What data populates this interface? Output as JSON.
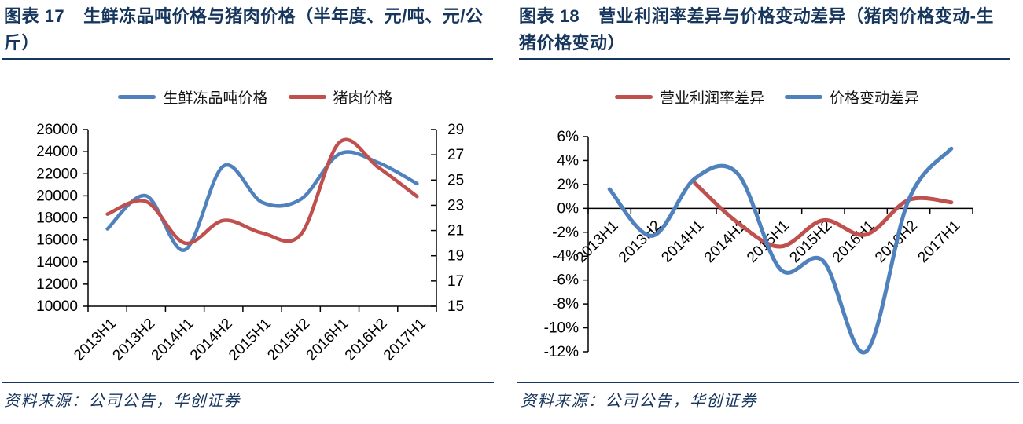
{
  "accent_color": "#17365D",
  "left_panel": {
    "figure_label": "图表 17",
    "title": "生鲜冻品吨价格与猪肉价格（半年度、元/吨、元/公斤）",
    "source": "资料来源：公司公告，华创证券"
  },
  "right_panel": {
    "figure_label": "图表 18",
    "title": "营业利润率差异与价格变动差异（猪肉价格变动-生猪价格变动）",
    "source": "资料来源：公司公告，华创证券"
  },
  "chart_data": [
    {
      "type": "line",
      "title": "生鲜冻品吨价格与猪肉价格（半年度、元/吨、元/公斤）",
      "categories": [
        "2013H1",
        "2013H2",
        "2014H1",
        "2014H2",
        "2015H1",
        "2015H2",
        "2016H1",
        "2016H2",
        "2017H1"
      ],
      "series": [
        {
          "name": "生鲜冻品吨价格",
          "color": "#4F81BD",
          "axis": "left",
          "values": [
            17000,
            20000,
            15100,
            22700,
            19400,
            19700,
            23800,
            23000,
            21100
          ]
        },
        {
          "name": "猪肉价格",
          "color": "#C0504D",
          "axis": "right",
          "values": [
            22.3,
            23.3,
            20.0,
            21.8,
            20.8,
            20.7,
            28.0,
            26.0,
            23.7
          ]
        }
      ],
      "left_axis": {
        "min": 10000,
        "max": 26000,
        "step": 2000,
        "tick_labels": [
          "26000",
          "24000",
          "22000",
          "20000",
          "18000",
          "16000",
          "14000",
          "12000",
          "10000"
        ]
      },
      "right_axis": {
        "min": 15,
        "max": 29,
        "step": 2,
        "tick_labels": [
          "29",
          "27",
          "25",
          "23",
          "21",
          "19",
          "17",
          "15"
        ]
      },
      "grid": false,
      "smooth": true,
      "legend_position": "top"
    },
    {
      "type": "line",
      "title": "营业利润率差异与价格变动差异（猪肉价格变动-生猪价格变动）",
      "categories": [
        "2013H1",
        "2013H2",
        "2014H1",
        "2014H2",
        "2015H1",
        "2015H2",
        "2016H1",
        "2016H2",
        "2017H1"
      ],
      "series": [
        {
          "name": "营业利润率差异",
          "color": "#C0504D",
          "values": [
            null,
            null,
            2.1,
            -1.2,
            -3.2,
            -1.0,
            -2.2,
            0.7,
            0.5
          ]
        },
        {
          "name": "价格变动差异",
          "color": "#4F81BD",
          "values": [
            1.6,
            -2.3,
            2.5,
            2.9,
            -5.1,
            -4.4,
            -12.0,
            0.7,
            5.0
          ]
        }
      ],
      "y_axis": {
        "min": -12,
        "max": 6,
        "step": 2,
        "unit": "percent",
        "tick_labels": [
          "6%",
          "4%",
          "2%",
          "0%",
          "-2%",
          "-4%",
          "-6%",
          "-8%",
          "-10%",
          "-12%"
        ]
      },
      "x_axis_at_zero": true,
      "grid": false,
      "smooth": true,
      "legend_position": "top"
    }
  ]
}
